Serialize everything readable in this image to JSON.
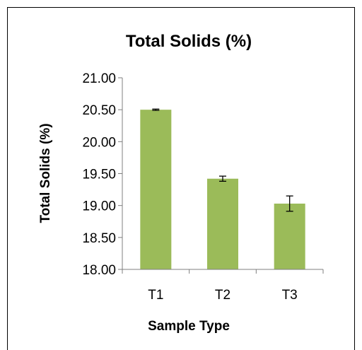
{
  "chart_data": {
    "type": "bar",
    "title": "Total Solids (%)",
    "xlabel": "Sample Type",
    "ylabel": "Total Solids (%)",
    "categories": [
      "T1",
      "T2",
      "T3"
    ],
    "values": [
      20.5,
      19.42,
      19.03
    ],
    "error": [
      0.01,
      0.04,
      0.12
    ],
    "ylim": [
      18.0,
      21.0
    ],
    "yticks": [
      "18.00",
      "18.50",
      "19.00",
      "19.50",
      "20.00",
      "20.50",
      "21.00"
    ],
    "bar_color": "#9BBB59",
    "grid": false,
    "legend": "none"
  }
}
